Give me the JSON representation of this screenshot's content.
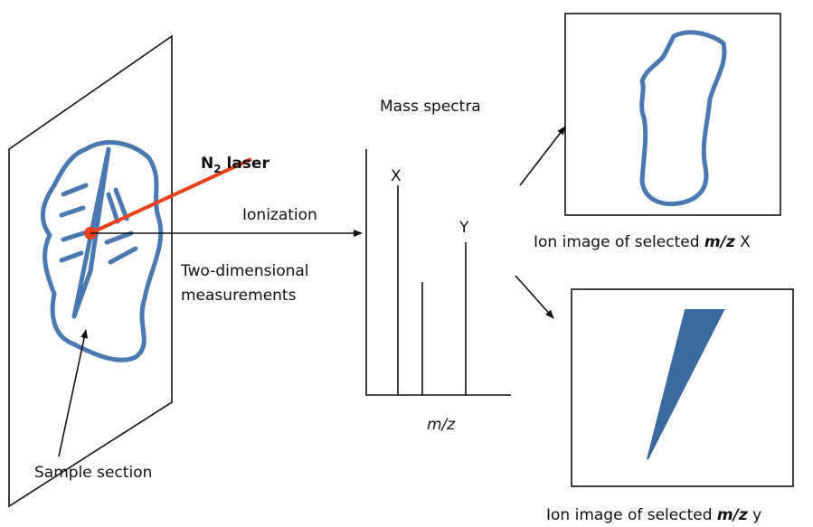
{
  "laser": {
    "symbol": "N",
    "subscript": "2",
    "text": " laser"
  },
  "ionization_label": "Ionization",
  "measurement_label": [
    "Two-dimensional",
    "measurements"
  ],
  "sample_label": "Sample section",
  "spectrum": {
    "title": "Mass spectra",
    "peak_labels": [
      "X",
      "Y"
    ],
    "axis_label": "m/z"
  },
  "ion_images": [
    {
      "caption_prefix": "Ion image of selected ",
      "caption_mz": "m/z",
      "caption_ion": " X"
    },
    {
      "caption_prefix": "Ion image of selected ",
      "caption_mz": "m/z",
      "caption_ion": " y"
    }
  ]
}
